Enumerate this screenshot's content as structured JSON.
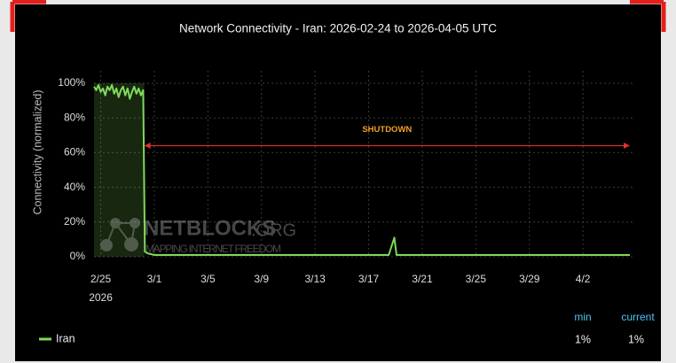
{
  "chart_data": {
    "type": "line",
    "title": "Network Connectivity - Iran: 2026-02-24 to 2026-04-05 UTC",
    "ylabel": "Connectivity (normalized)",
    "x": [
      "2026-02-24T12:00",
      "2026-02-24T16:00",
      "2026-02-24T20:00",
      "2026-02-25T00:00",
      "2026-02-25T04:00",
      "2026-02-25T08:00",
      "2026-02-25T12:00",
      "2026-02-25T16:00",
      "2026-02-25T20:00",
      "2026-02-26T00:00",
      "2026-02-26T04:00",
      "2026-02-26T08:00",
      "2026-02-26T12:00",
      "2026-02-26T16:00",
      "2026-02-26T20:00",
      "2026-02-27T00:00",
      "2026-02-27T04:00",
      "2026-02-27T08:00",
      "2026-02-27T12:00",
      "2026-02-27T16:00",
      "2026-02-27T20:00",
      "2026-02-28T00:00",
      "2026-02-28T04:00",
      "2026-02-28T07:00",
      "2026-02-28T12:00",
      "2026-03-01T00:00",
      "2026-03-03T00:00",
      "2026-03-06T00:00",
      "2026-03-09T00:00",
      "2026-03-12T00:00",
      "2026-03-15T00:00",
      "2026-03-18T12:00",
      "2026-03-18T22:00",
      "2026-03-19T02:00",
      "2026-03-22T00:00",
      "2026-03-26T00:00",
      "2026-03-30T00:00",
      "2026-04-03T00:00",
      "2026-04-05T12:00"
    ],
    "series": [
      {
        "name": "Iran",
        "color": "#7fd95a",
        "values": [
          98,
          96,
          99,
          95,
          97,
          93,
          98,
          96,
          99,
          94,
          97,
          92,
          96,
          98,
          93,
          97,
          91,
          95,
          98,
          94,
          97,
          93,
          96,
          3,
          2,
          1,
          1,
          1,
          1,
          1,
          1,
          1,
          11,
          1,
          1,
          1,
          1,
          1,
          1
        ]
      }
    ],
    "xlim": [
      "2026-02-24T12:00",
      "2026-04-05T12:00"
    ],
    "xticks": [
      {
        "value": "2026-02-25",
        "label": "2/25"
      },
      {
        "value": "2026-03-01",
        "label": "3/1"
      },
      {
        "value": "2026-03-05",
        "label": "3/5"
      },
      {
        "value": "2026-03-09",
        "label": "3/9"
      },
      {
        "value": "2026-03-13",
        "label": "3/13"
      },
      {
        "value": "2026-03-17",
        "label": "3/17"
      },
      {
        "value": "2026-03-21",
        "label": "3/21"
      },
      {
        "value": "2026-03-25",
        "label": "3/25"
      },
      {
        "value": "2026-03-29",
        "label": "3/29"
      },
      {
        "value": "2026-04-02",
        "label": "4/2"
      }
    ],
    "x_year": "2026",
    "ylim": [
      0,
      100
    ],
    "yticks": [
      {
        "value": 0,
        "label": "0%"
      },
      {
        "value": 20,
        "label": "20%"
      },
      {
        "value": 40,
        "label": "40%"
      },
      {
        "value": 60,
        "label": "60%"
      },
      {
        "value": 80,
        "label": "80%"
      },
      {
        "value": 100,
        "label": "100%"
      }
    ],
    "grid": true,
    "highlight": {
      "x": [
        "2026-02-24T12:00",
        "2026-02-28T06:00"
      ],
      "color": "#7fd95a"
    },
    "annotation": {
      "text": "SHUTDOWN",
      "x": [
        "2026-02-28T06:00",
        "2026-04-05T12:00"
      ],
      "y": 64,
      "color": "#e0302c",
      "text_color": "#f0a020"
    },
    "watermark": {
      "name": "NETBLOCKS",
      "suffix": ".ORG",
      "tagline": "MAPPING INTERNET FREEDOM"
    },
    "stats": {
      "headers": [
        "min",
        "current"
      ],
      "values": [
        1,
        1
      ],
      "value_labels": [
        "1%",
        "1%"
      ]
    }
  }
}
